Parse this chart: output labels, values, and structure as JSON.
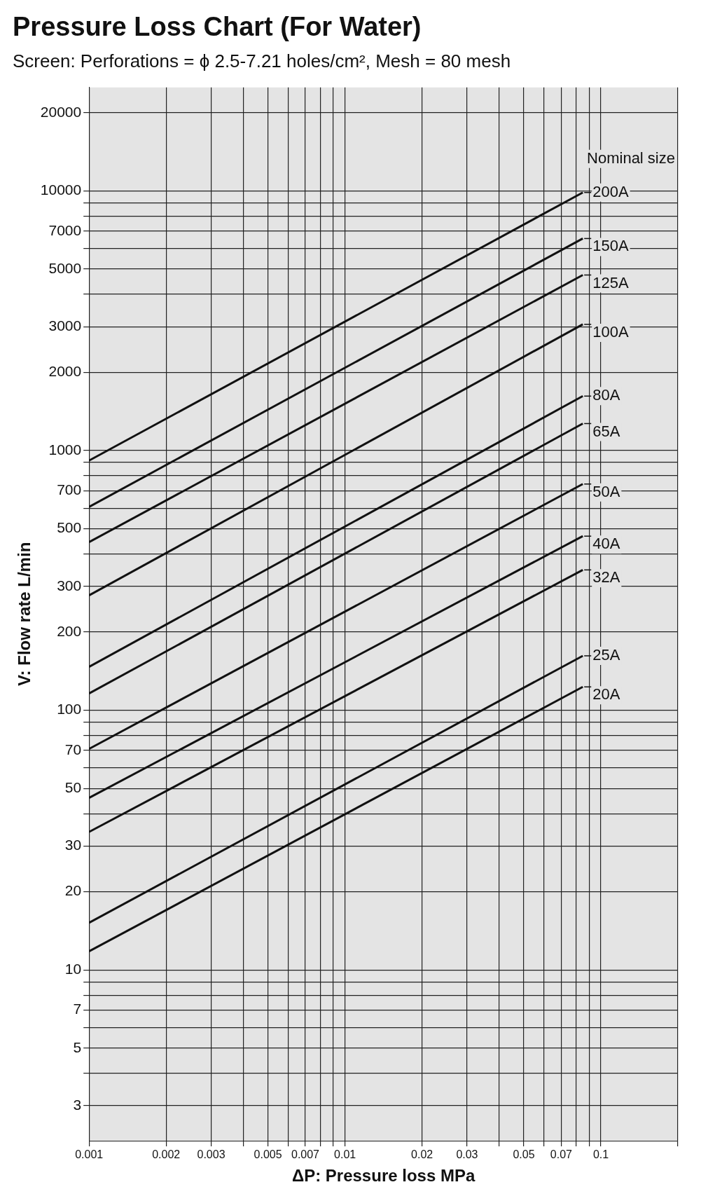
{
  "chart_data": {
    "type": "line",
    "title": "Pressure Loss Chart (For Water)",
    "subtitle": "Screen: Perforations = ϕ 2.5-7.21 holes/cm², Mesh = 80 mesh",
    "xlabel": "ΔP: Pressure loss MPa",
    "ylabel": "V: Flow rate L/min",
    "legend_title": "Nominal size",
    "log": "xy",
    "grid": true,
    "legend": "right",
    "marker": "none",
    "line_style": "solid",
    "xlim": [
      0.001,
      0.2
    ],
    "ylim": [
      2.2,
      25000
    ],
    "xticks": [
      0.001,
      0.002,
      0.003,
      {
        "value": 0.004,
        "label": null
      },
      0.005,
      {
        "value": 0.006,
        "label": null
      },
      0.007,
      {
        "value": 0.008,
        "label": null
      },
      {
        "value": 0.009,
        "label": null
      },
      0.01,
      0.02,
      0.03,
      {
        "value": 0.04,
        "label": null
      },
      0.05,
      {
        "value": 0.06,
        "label": null
      },
      0.07,
      {
        "value": 0.08,
        "label": null
      },
      {
        "value": 0.09,
        "label": null
      },
      0.1,
      {
        "value": 0.2,
        "label": null
      }
    ],
    "yticks": [
      3,
      {
        "value": 4,
        "label": null
      },
      5,
      {
        "value": 6,
        "label": null
      },
      7,
      {
        "value": 8,
        "label": null
      },
      {
        "value": 9,
        "label": null
      },
      10,
      20,
      30,
      {
        "value": 40,
        "label": null
      },
      50,
      {
        "value": 60,
        "label": null
      },
      70,
      {
        "value": 80,
        "label": null
      },
      {
        "value": 90,
        "label": null
      },
      100,
      200,
      300,
      {
        "value": 400,
        "label": null
      },
      500,
      {
        "value": 600,
        "label": null
      },
      700,
      {
        "value": 800,
        "label": null
      },
      {
        "value": 900,
        "label": null
      },
      1000,
      2000,
      3000,
      {
        "value": 4000,
        "label": null
      },
      5000,
      {
        "value": 6000,
        "label": null
      },
      7000,
      {
        "value": 8000,
        "label": null
      },
      {
        "value": 9000,
        "label": null
      },
      10000,
      20000
    ],
    "x": [
      0.001,
      0.085
    ],
    "series": [
      {
        "name": "200A",
        "color": "#111111",
        "values": [
          915,
          9850
        ]
      },
      {
        "name": "150A",
        "color": "#111111",
        "values": [
          607,
          6550
        ]
      },
      {
        "name": "125A",
        "color": "#111111",
        "values": [
          444,
          4740
        ]
      },
      {
        "name": "100A",
        "color": "#111111",
        "values": [
          277,
          3060
        ]
      },
      {
        "name": "80A",
        "color": "#111111",
        "values": [
          147,
          1620
        ]
      },
      {
        "name": "65A",
        "color": "#111111",
        "values": [
          116,
          1270
        ]
      },
      {
        "name": "50A",
        "color": "#111111",
        "values": [
          71,
          743
        ]
      },
      {
        "name": "40A",
        "color": "#111111",
        "values": [
          46,
          468
        ]
      },
      {
        "name": "32A",
        "color": "#111111",
        "values": [
          34,
          347
        ]
      },
      {
        "name": "25A",
        "color": "#111111",
        "values": [
          15.2,
          162
        ]
      },
      {
        "name": "20A",
        "color": "#111111",
        "values": [
          11.8,
          123
        ]
      }
    ]
  }
}
